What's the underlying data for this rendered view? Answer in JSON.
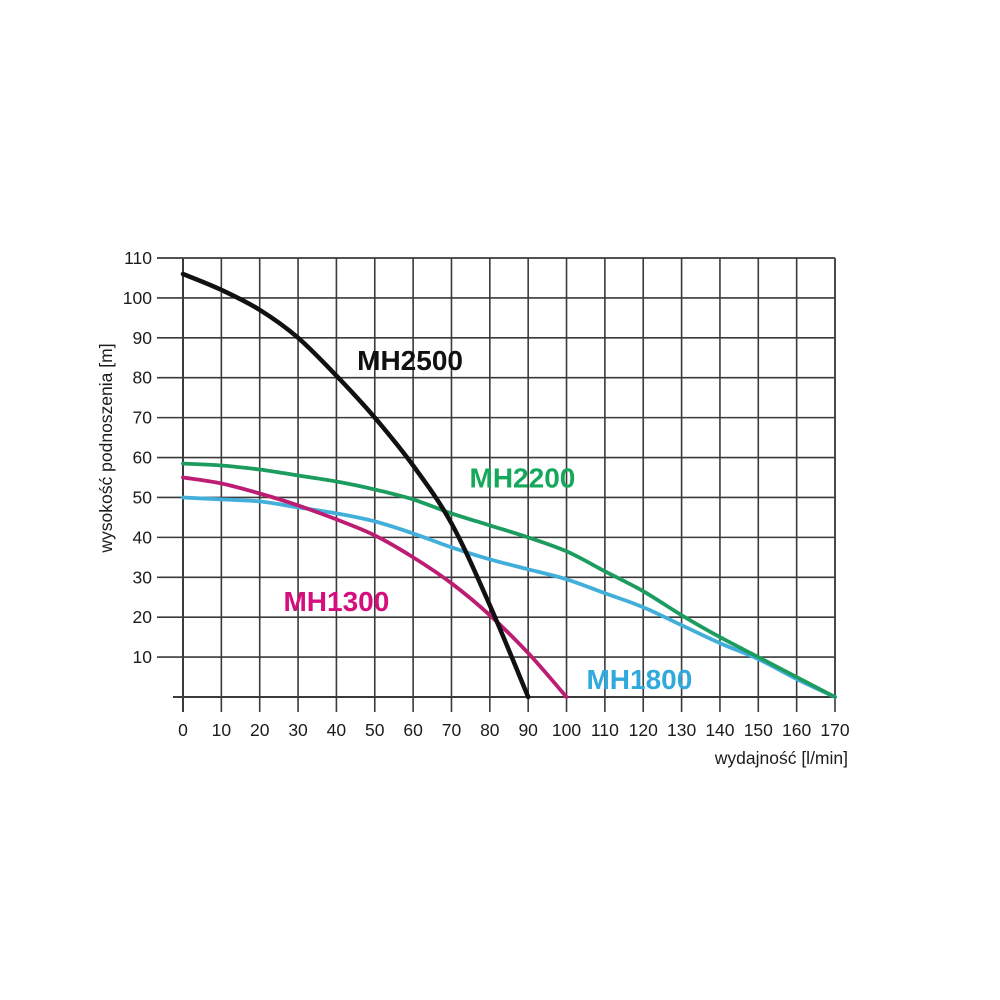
{
  "page": {
    "background": "#ffffff"
  },
  "chart_data": {
    "type": "line",
    "title": "",
    "xlabel": "wydajność [l/min]",
    "ylabel": "wysokość podnoszenia [m]",
    "xlim": [
      0,
      170
    ],
    "ylim": [
      0,
      110
    ],
    "x_ticks": [
      0,
      10,
      20,
      30,
      40,
      50,
      60,
      70,
      80,
      90,
      100,
      110,
      120,
      130,
      140,
      150,
      160,
      170
    ],
    "y_ticks": [
      10,
      20,
      30,
      40,
      50,
      60,
      70,
      80,
      90,
      100,
      110
    ],
    "grid": true,
    "grid_color": "#3a3a3a",
    "legend_position": "inline-labels",
    "series": [
      {
        "name": "MH1800",
        "color": "#42afdb",
        "label_color": "#31a9dd",
        "label_x": 119,
        "label_y": 4.5,
        "points": [
          [
            0,
            50
          ],
          [
            10,
            49.5
          ],
          [
            20,
            49
          ],
          [
            30,
            47.5
          ],
          [
            40,
            46
          ],
          [
            50,
            44
          ],
          [
            60,
            41
          ],
          [
            70,
            37.5
          ],
          [
            80,
            34.5
          ],
          [
            90,
            32
          ],
          [
            100,
            29.5
          ],
          [
            110,
            26
          ],
          [
            120,
            22.5
          ],
          [
            130,
            18
          ],
          [
            140,
            13.5
          ],
          [
            150,
            9.5
          ],
          [
            160,
            4.5
          ],
          [
            170,
            0
          ]
        ]
      },
      {
        "name": "MH2200",
        "color": "#1d9c60",
        "label_color": "#16a85a",
        "label_x": 88.5,
        "label_y": 55,
        "points": [
          [
            0,
            58.5
          ],
          [
            10,
            58
          ],
          [
            20,
            57
          ],
          [
            30,
            55.5
          ],
          [
            40,
            54
          ],
          [
            50,
            52
          ],
          [
            60,
            49.5
          ],
          [
            70,
            46
          ],
          [
            80,
            43
          ],
          [
            90,
            40
          ],
          [
            100,
            36.5
          ],
          [
            110,
            31.5
          ],
          [
            120,
            26.5
          ],
          [
            130,
            20.5
          ],
          [
            140,
            15
          ],
          [
            150,
            10
          ],
          [
            160,
            5
          ],
          [
            170,
            0
          ]
        ]
      },
      {
        "name": "MH1300",
        "color": "#bc1d72",
        "label_color": "#d40f7d",
        "label_x": 40,
        "label_y": 24,
        "points": [
          [
            0,
            55
          ],
          [
            10,
            53.5
          ],
          [
            20,
            51
          ],
          [
            30,
            48
          ],
          [
            40,
            44.5
          ],
          [
            50,
            40.5
          ],
          [
            60,
            35
          ],
          [
            70,
            28.5
          ],
          [
            80,
            20.5
          ],
          [
            90,
            11
          ],
          [
            100,
            0
          ]
        ]
      },
      {
        "name": "MH2500",
        "color": "#111111",
        "label_color": "#111111",
        "label_x": 59.2,
        "label_y": 84.5,
        "points": [
          [
            0,
            106
          ],
          [
            10,
            102
          ],
          [
            20,
            97
          ],
          [
            30,
            90
          ],
          [
            40,
            80.5
          ],
          [
            50,
            70
          ],
          [
            60,
            58
          ],
          [
            70,
            43.5
          ],
          [
            80,
            23
          ],
          [
            90,
            0
          ]
        ]
      }
    ]
  }
}
